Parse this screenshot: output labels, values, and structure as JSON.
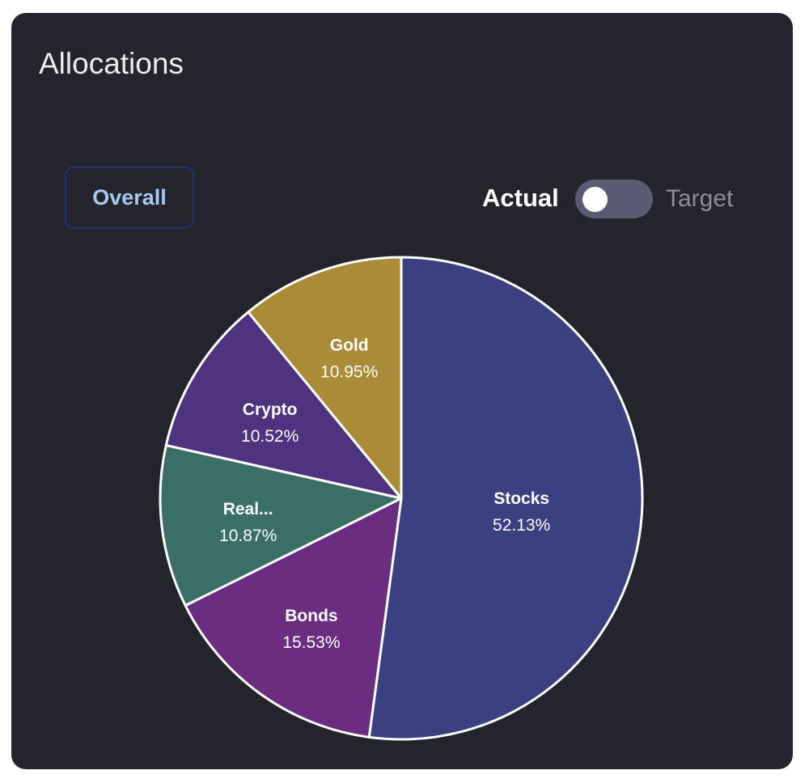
{
  "card": {
    "title": "Allocations"
  },
  "controls": {
    "overall_label": "Overall",
    "actual_label": "Actual",
    "target_label": "Target",
    "toggle_state": "actual"
  },
  "chart_data": {
    "type": "pie",
    "categories": [
      "Stocks",
      "Bonds",
      "Real...",
      "Crypto",
      "Gold"
    ],
    "values": [
      52.13,
      15.53,
      10.87,
      10.52,
      10.95
    ],
    "labels": [
      "52.13%",
      "15.53%",
      "10.87%",
      "10.52%",
      "10.95%"
    ],
    "colors": [
      "#3a4080",
      "#6a2d80",
      "#3a6e67",
      "#4e337f",
      "#a98b38"
    ],
    "start_angle_deg": 0,
    "direction": "clockwise",
    "slice_border_color": "#ffffff",
    "title": "",
    "legend": "none"
  }
}
